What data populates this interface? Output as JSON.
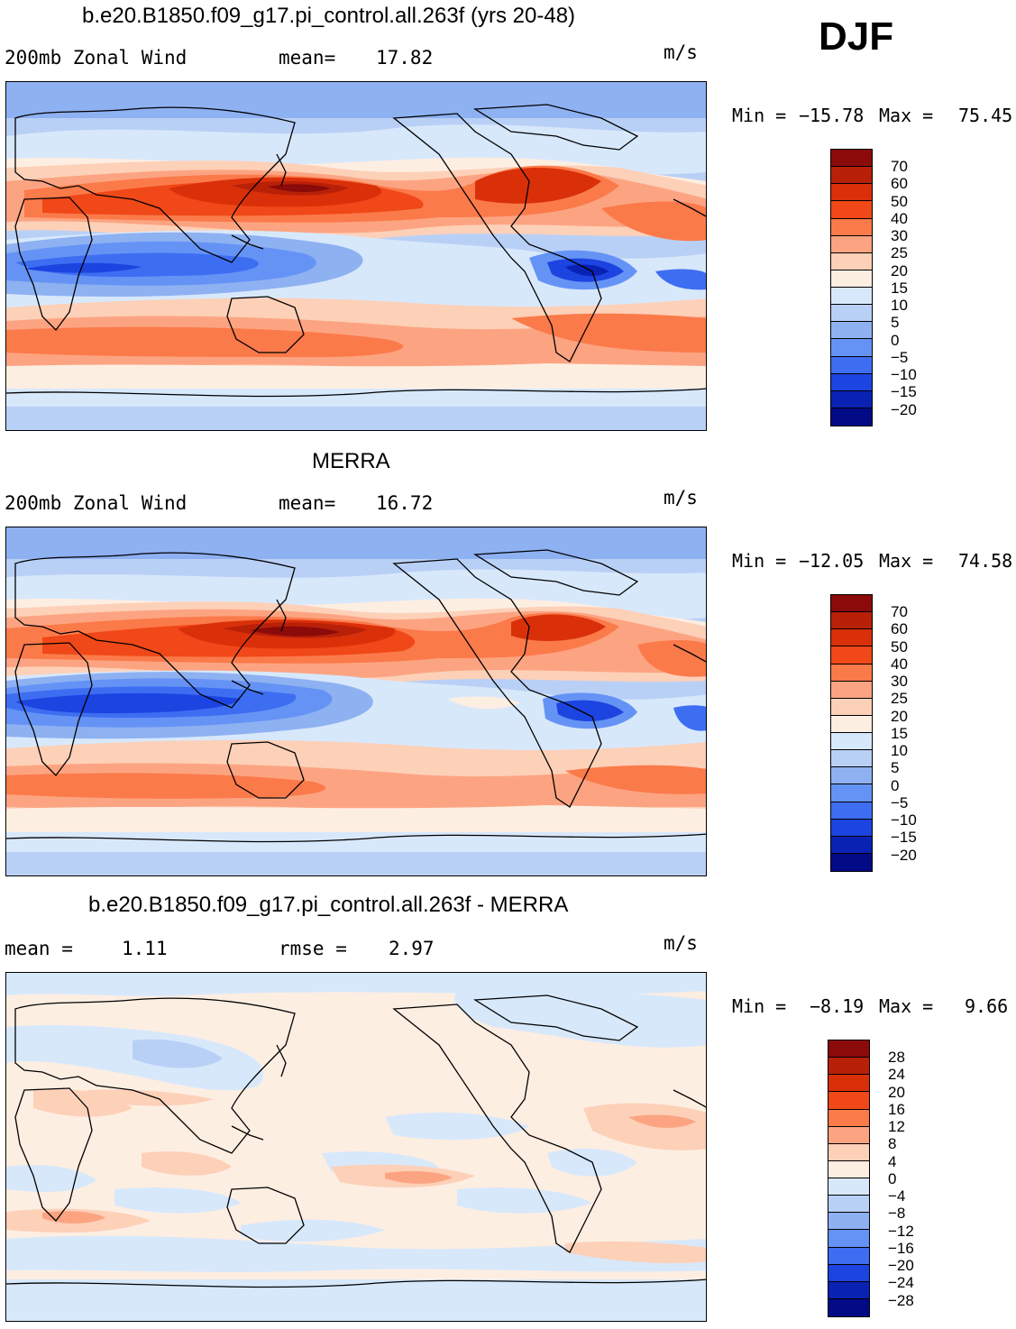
{
  "season": "DJF",
  "units": "m/s",
  "panels": [
    {
      "title": "b.e20.B1850.f09_g17.pi_control.all.263f (yrs 20-48)",
      "left_label": "200mb Zonal Wind",
      "stat_label": "mean=",
      "stat_value": "17.82",
      "min_label": "Min =",
      "min_value": "−15.78",
      "max_label": "Max =",
      "max_value": "75.45",
      "colorbar_levels": [
        "70",
        "60",
        "50",
        "40",
        "30",
        "25",
        "20",
        "15",
        "10",
        "5",
        "0",
        "−5",
        "−10",
        "−15",
        "−20"
      ]
    },
    {
      "title": "MERRA",
      "left_label": "200mb Zonal Wind",
      "stat_label": "mean=",
      "stat_value": "16.72",
      "min_label": "Min =",
      "min_value": "−12.05",
      "max_label": "Max =",
      "max_value": "74.58",
      "colorbar_levels": [
        "70",
        "60",
        "50",
        "40",
        "30",
        "25",
        "20",
        "15",
        "10",
        "5",
        "0",
        "−5",
        "−10",
        "−15",
        "−20"
      ]
    },
    {
      "title": "b.e20.B1850.f09_g17.pi_control.all.263f - MERRA",
      "left_label": "mean =",
      "left_value": "1.11",
      "stat_label": "rmse =",
      "stat_value": "2.97",
      "min_label": "Min =",
      "min_value": "−8.19",
      "max_label": "Max =",
      "max_value": "9.66",
      "colorbar_levels": [
        "28",
        "24",
        "20",
        "16",
        "12",
        "8",
        "4",
        "0",
        "−4",
        "−8",
        "−12",
        "−16",
        "−20",
        "−24",
        "−28"
      ]
    }
  ],
  "colors": {
    "field_palette": [
      "#8b0a0a",
      "#b82008",
      "#da300a",
      "#f04818",
      "#fb7a4a",
      "#fca482",
      "#fdd0b8",
      "#fdeee2",
      "#d8e8fb",
      "#b9d0f6",
      "#8eb1f2",
      "#6593f5",
      "#3d6ef2",
      "#1c44e0",
      "#0a22b4",
      "#020a86"
    ],
    "diff_palette": [
      "#8b0a0a",
      "#b82008",
      "#da300a",
      "#f04818",
      "#fb7a4a",
      "#fca482",
      "#fdd0b8",
      "#fdeee2",
      "#d8e8fb",
      "#b9d0f6",
      "#8eb1f2",
      "#6593f5",
      "#3d6ef2",
      "#1c44e0",
      "#0a22b4",
      "#020a86"
    ]
  }
}
